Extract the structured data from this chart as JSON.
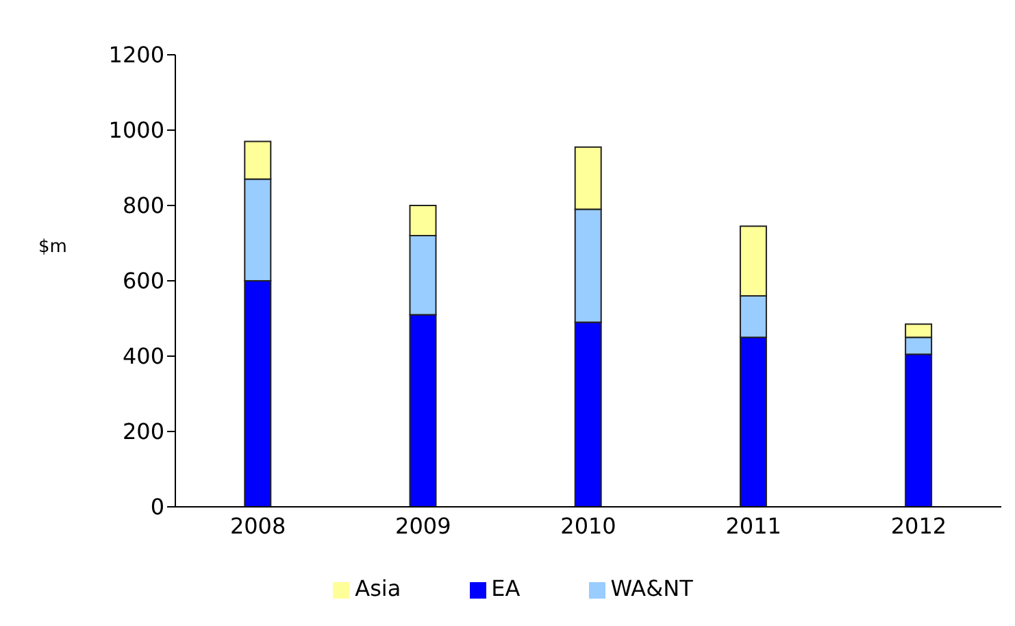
{
  "chart_data": {
    "type": "bar",
    "stacked": true,
    "ylabel": "$m",
    "categories": [
      "2008",
      "2009",
      "2010",
      "2011",
      "2012"
    ],
    "series": [
      {
        "name": "EA",
        "color": "#0000ff",
        "values": [
          600,
          510,
          490,
          450,
          405
        ]
      },
      {
        "name": "WA&NT",
        "color": "#99ccff",
        "values": [
          270,
          210,
          300,
          110,
          45
        ]
      },
      {
        "name": "Asia",
        "color": "#ffff99",
        "values": [
          100,
          80,
          165,
          185,
          35
        ]
      }
    ],
    "ylim": [
      0,
      1200
    ],
    "yticks": [
      0,
      200,
      400,
      600,
      800,
      1000,
      1200
    ],
    "grid": false,
    "legend": "bottom"
  }
}
